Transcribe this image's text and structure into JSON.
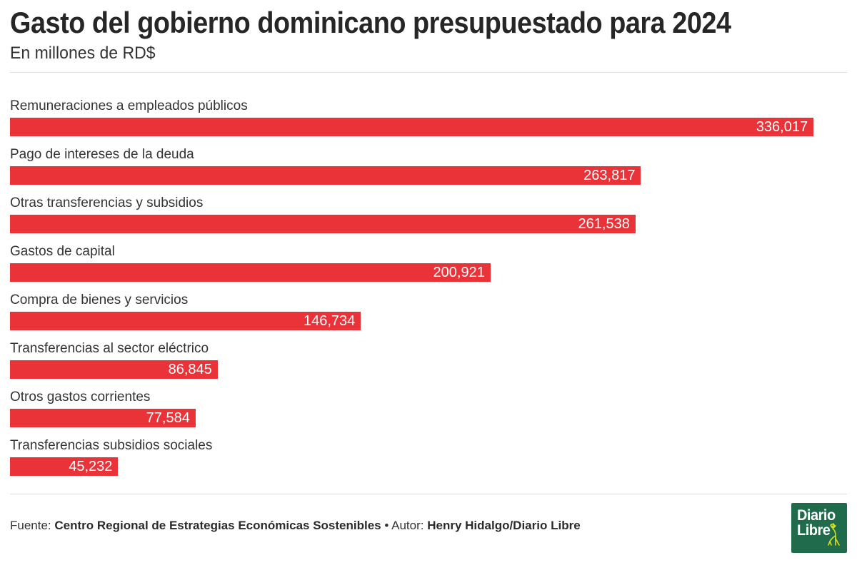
{
  "header": {
    "title": "Gasto del gobierno dominicano presupuestado para 2024",
    "subtitle": "En millones de RD$"
  },
  "chart_data": {
    "type": "bar",
    "orientation": "horizontal",
    "title": "Gasto del gobierno dominicano presupuestado para 2024",
    "units": "En millones de RD$",
    "categories": [
      "Remuneraciones a empleados públicos",
      "Pago de intereses de la deuda",
      "Otras transferencias y subsidios",
      "Gastos de capital",
      "Compra de bienes y servicios",
      "Transferencias al sector eléctrico",
      "Otros gastos corrientes",
      "Transferencias subsidios sociales"
    ],
    "values": [
      336017,
      263817,
      261538,
      200921,
      146734,
      86845,
      77584,
      45232
    ],
    "value_labels": [
      "336,017",
      "263,817",
      "261,538",
      "200,921",
      "146,734",
      "86,845",
      "77,584",
      "45,232"
    ],
    "xlim": [
      0,
      350000
    ],
    "grid": false,
    "legend": false,
    "bar_color": "#e93339",
    "value_label_position": "inside-end",
    "value_label_color": "#ffffff"
  },
  "footer": {
    "source_label": "Fuente:",
    "source": "Centro Regional de Estrategias Económicas Sostenibles",
    "separator": "•",
    "author_label": "Autor:",
    "author": "Henry Hidalgo/Diario Libre"
  },
  "logo": {
    "line1": "Diario",
    "line2": "Libre",
    "bg_color": "#1f6b4b",
    "mascot_color": "#d9e021"
  }
}
